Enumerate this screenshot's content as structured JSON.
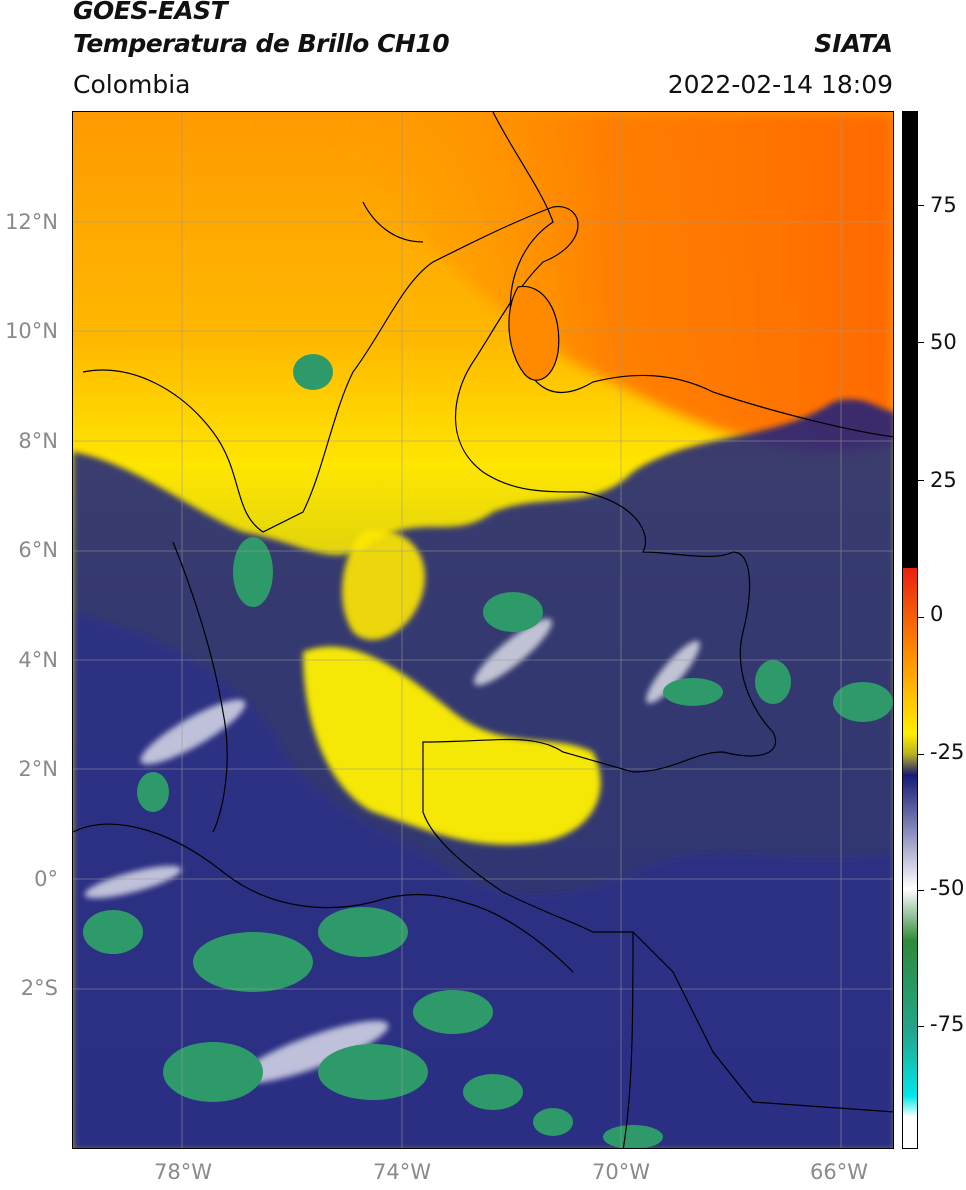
{
  "header": {
    "satellite": "GOES-EAST",
    "product": "Temperatura de Brillo CH10",
    "agency": "SIATA",
    "region": "Colombia",
    "datetime": "2022-02-14 18:09"
  },
  "axes": {
    "lat_labels": [
      "12°N",
      "10°N",
      "8°N",
      "6°N",
      "4°N",
      "2°N",
      "0°",
      "2°S"
    ],
    "lon_labels": [
      "78°W",
      "74°W",
      "70°W",
      "66°W"
    ]
  },
  "colorbar": {
    "tick_labels": [
      "75",
      "50",
      "25",
      "0",
      "-25",
      "-50",
      "-75"
    ],
    "colors": {
      "above_zero": "#000000",
      "zero": "#e82010",
      "orange": "#ff8a00",
      "yellow": "#ffee00",
      "olive": "#b8b020",
      "navy": "#151a78",
      "white": "#ffffff",
      "green": "#2e8a3a",
      "teal": "#20a890",
      "cyan": "#00e8e8"
    }
  },
  "map_colors": {
    "cold_cloud": "#2e9a6a",
    "navy": "#1a1f80",
    "yellow": "#fff000",
    "orange": "#ff7a00",
    "olive": "#a8a638",
    "border": "#000000"
  }
}
